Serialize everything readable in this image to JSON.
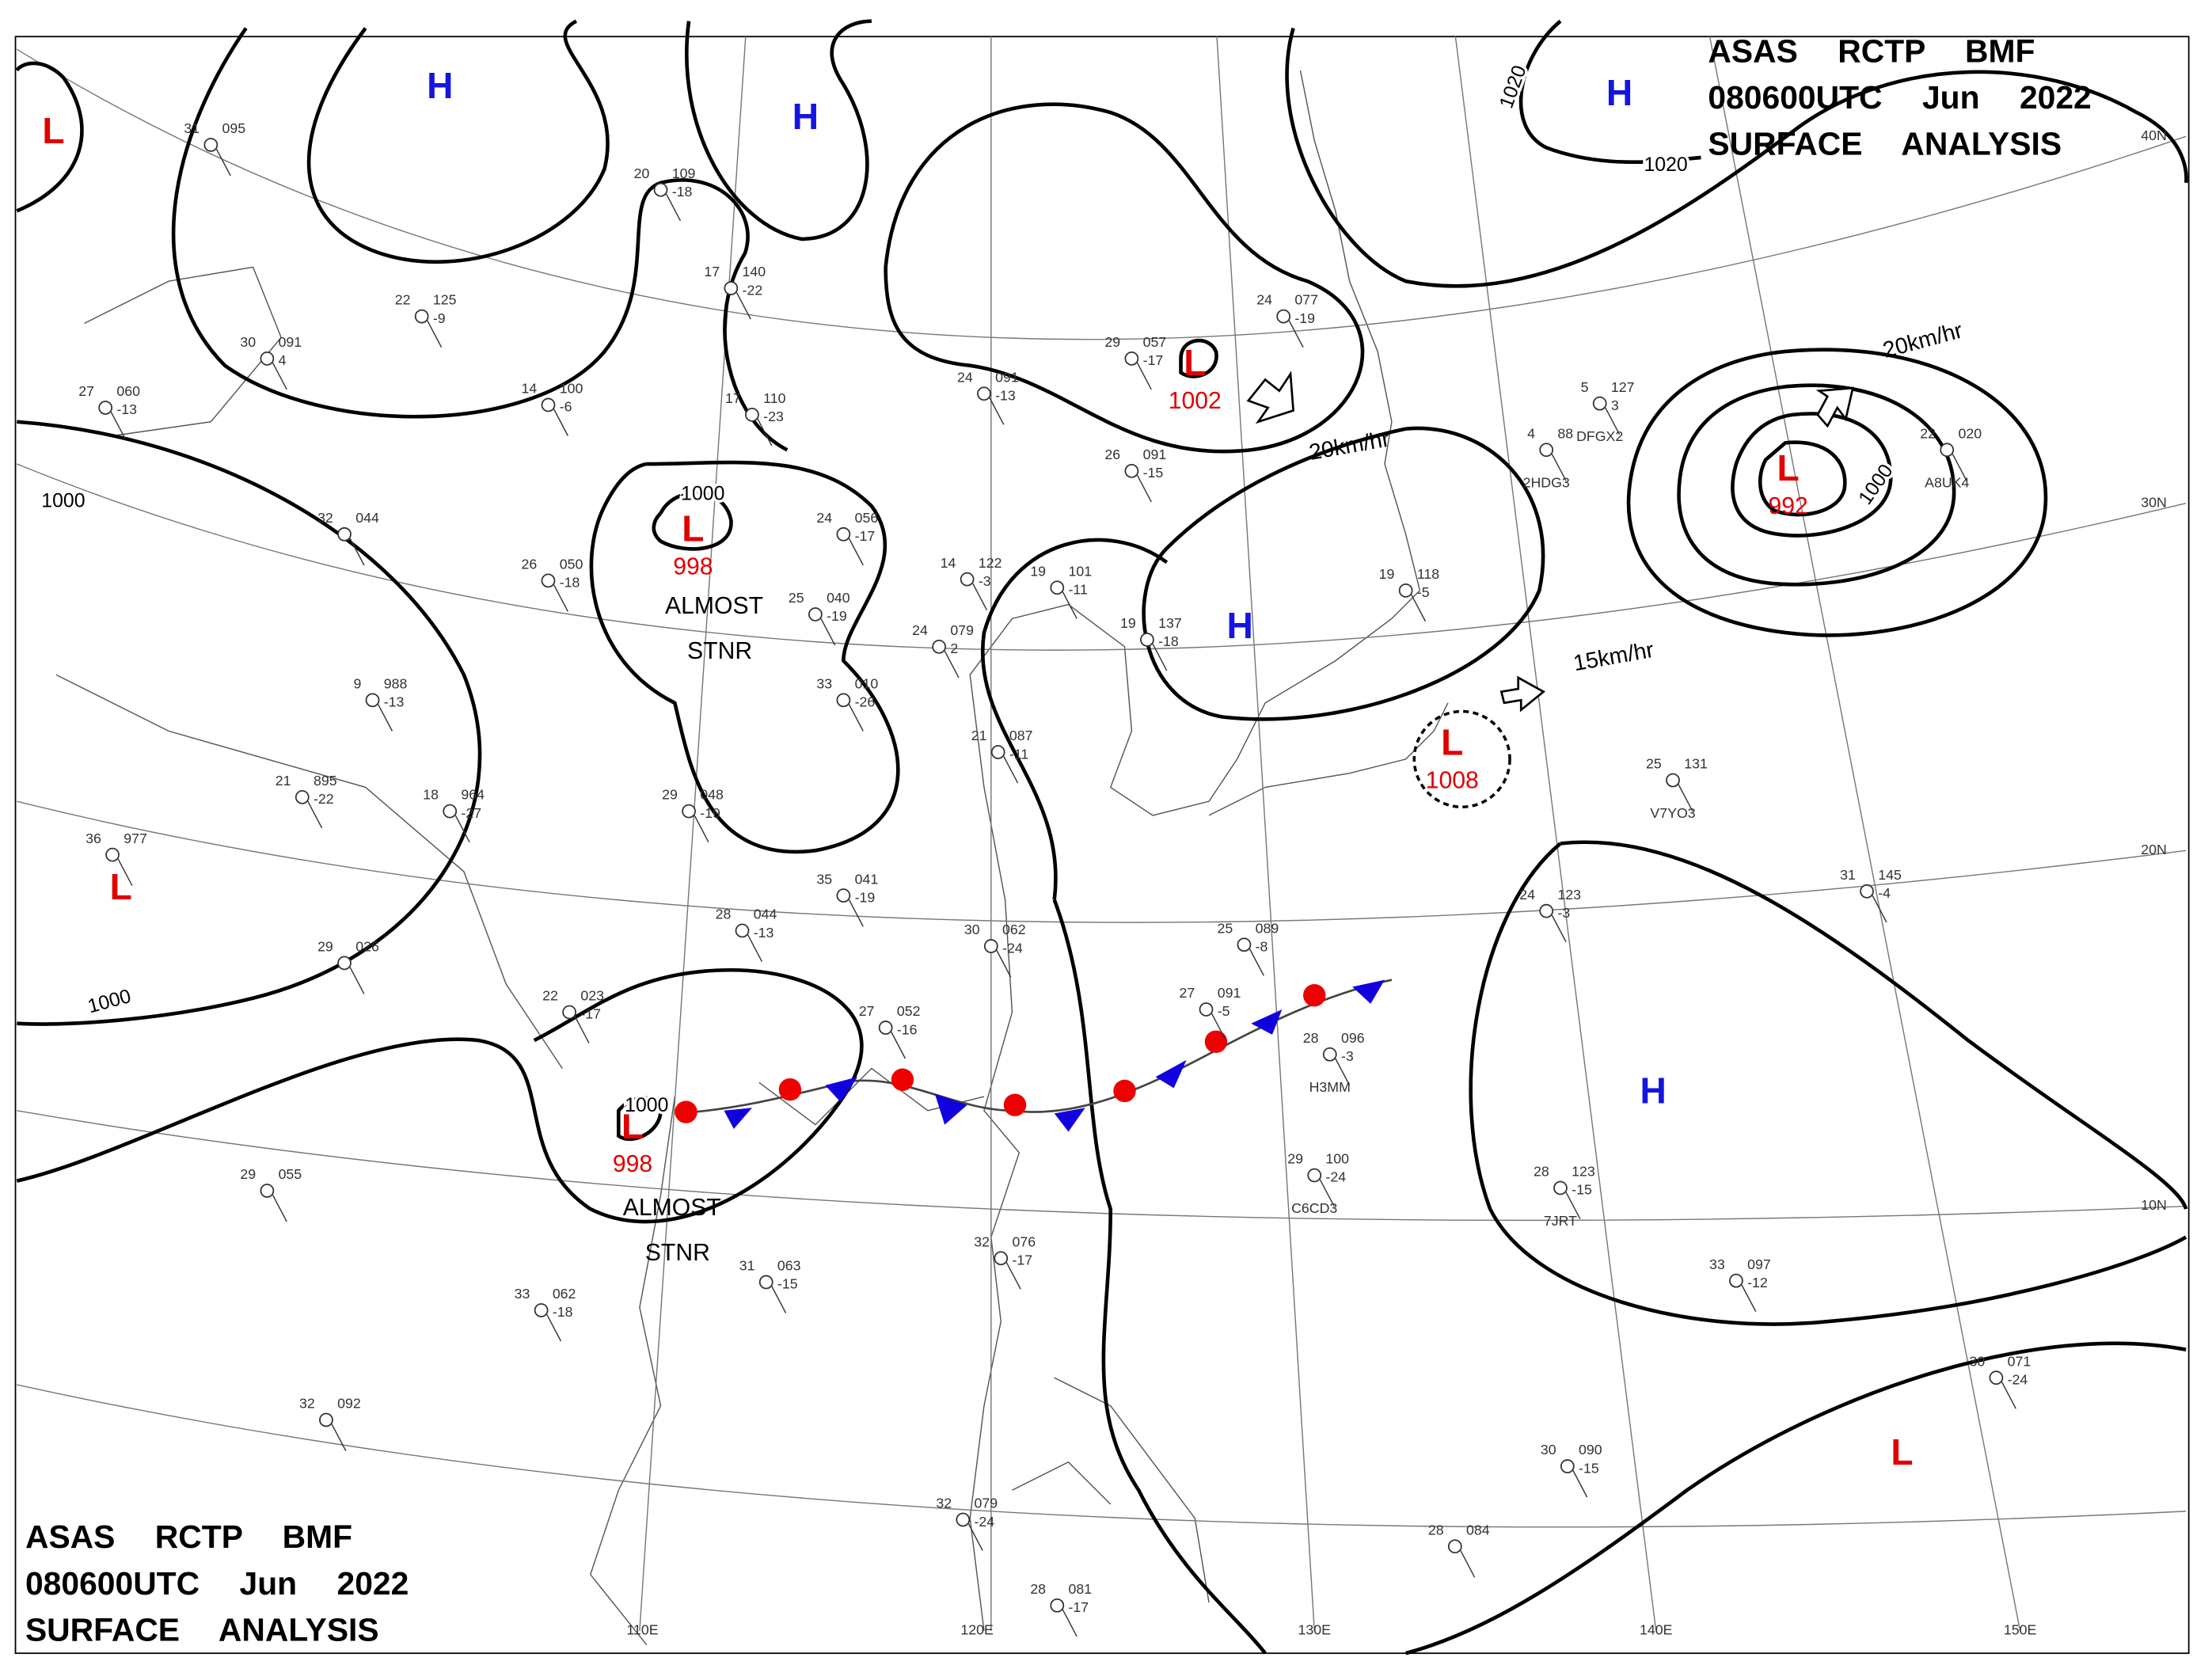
{
  "header": {
    "lines": [
      "ASAS RCTP BMF",
      "080600UTC Jun 2022",
      "SURFACE ANALYSIS"
    ]
  },
  "pressure_systems": [
    {
      "type": "H"
    },
    {
      "type": "L"
    },
    {
      "type": "H"
    },
    {
      "type": "H"
    },
    {
      "type": "L",
      "pressure": "1002"
    },
    {
      "type": "L",
      "pressure": "998"
    },
    {
      "type": "L",
      "pressure": "992"
    },
    {
      "type": "H"
    },
    {
      "type": "L",
      "pressure": "1008"
    },
    {
      "type": "L"
    },
    {
      "type": "H"
    },
    {
      "type": "L",
      "pressure": "998"
    },
    {
      "type": "L"
    }
  ],
  "isobar_labels": [
    "1000",
    "1000",
    "1000",
    "1000",
    "1000",
    "1020",
    "1020"
  ],
  "motion_labels": [
    "20km/hr",
    "15km/hr",
    "20km/hr"
  ],
  "stationary_notes": [
    {
      "lines": [
        "ALMOST",
        "STNR"
      ]
    },
    {
      "lines": [
        "ALMOST",
        "STNR"
      ]
    }
  ],
  "latitude_labels": [
    "40N",
    "30N",
    "20N",
    "10N"
  ],
  "longitude_labels": [
    "110E",
    "120E",
    "130E",
    "140E",
    "150E"
  ],
  "stations": [
    {
      "temp": "31",
      "pressure": "095"
    },
    {
      "temp": "20",
      "pressure": "109",
      "dew": "-18"
    },
    {
      "temp": "17",
      "pressure": "140",
      "dew": "-22"
    },
    {
      "temp": "22",
      "pressure": "125",
      "dew": "-9"
    },
    {
      "temp": "30",
      "pressure": "091",
      "dew": "4"
    },
    {
      "temp": "27",
      "pressure": "060",
      "dew": "-13"
    },
    {
      "temp": "14",
      "pressure": "100",
      "dew": "-6"
    },
    {
      "temp": "17",
      "pressure": "110",
      "dew": "-23"
    },
    {
      "temp": "24",
      "pressure": "091",
      "dew": "-13"
    },
    {
      "temp": "29",
      "pressure": "057",
      "dew": "-17"
    },
    {
      "temp": "24",
      "pressure": "077",
      "dew": "-19"
    },
    {
      "temp": "26",
      "pressure": "091",
      "dew": "-15"
    },
    {
      "temp": "24",
      "pressure": "056",
      "dew": "-17"
    },
    {
      "temp": "14",
      "pressure": "122",
      "dew": "-3"
    },
    {
      "temp": "19",
      "pressure": "101",
      "dew": "-11"
    },
    {
      "temp": "25",
      "pressure": "040",
      "dew": "-19"
    },
    {
      "temp": "24",
      "pressure": "079",
      "dew": "2"
    },
    {
      "temp": "33",
      "pressure": "010",
      "dew": "-26"
    },
    {
      "temp": "9",
      "pressure": "988",
      "dew": "-13"
    },
    {
      "temp": "21",
      "pressure": "087",
      "dew": "-11"
    },
    {
      "temp": "21",
      "pressure": "895",
      "dew": "-22"
    },
    {
      "temp": "18",
      "pressure": "964",
      "dew": "-27"
    },
    {
      "temp": "29",
      "pressure": "048",
      "dew": "-19"
    },
    {
      "temp": "36",
      "pressure": "977"
    },
    {
      "temp": "35",
      "pressure": "041",
      "dew": "-19"
    },
    {
      "temp": "28",
      "pressure": "044",
      "dew": "-13"
    },
    {
      "temp": "30",
      "pressure": "062",
      "dew": "-24"
    },
    {
      "temp": "25",
      "pressure": "089",
      "dew": "-8"
    },
    {
      "temp": "29",
      "pressure": "026"
    },
    {
      "temp": "22",
      "pressure": "023",
      "dew": "-17"
    },
    {
      "temp": "27",
      "pressure": "052",
      "dew": "-16"
    },
    {
      "temp": "27",
      "pressure": "091",
      "dew": "-5"
    },
    {
      "temp": "28",
      "pressure": "096",
      "dew": "-3",
      "id": "H3MM"
    },
    {
      "temp": "29",
      "pressure": "055"
    },
    {
      "temp": "29",
      "pressure": "100",
      "dew": "-24",
      "id": "C6CD3"
    },
    {
      "temp": "28",
      "pressure": "123",
      "dew": "-15",
      "id": "7JRT"
    },
    {
      "temp": "32",
      "pressure": "076",
      "dew": "-17"
    },
    {
      "temp": "31",
      "pressure": "063",
      "dew": "-15"
    },
    {
      "temp": "33",
      "pressure": "062",
      "dew": "-18"
    },
    {
      "temp": "33",
      "pressure": "097",
      "dew": "-12"
    },
    {
      "temp": "30",
      "pressure": "071",
      "dew": "-24"
    },
    {
      "temp": "32",
      "pressure": "092"
    },
    {
      "temp": "30",
      "pressure": "090",
      "dew": "-15"
    },
    {
      "temp": "32",
      "pressure": "079",
      "dew": "-24"
    },
    {
      "temp": "28",
      "pressure": "084"
    },
    {
      "temp": "28",
      "pressure": "081",
      "dew": "-17"
    },
    {
      "temp": "31",
      "pressure": "145",
      "dew": "-4"
    },
    {
      "temp": "22",
      "pressure": "020",
      "id": "A8UK4"
    },
    {
      "temp": "24",
      "pressure": "123",
      "dew": "-3"
    },
    {
      "temp": "19",
      "pressure": "118",
      "dew": "-5"
    },
    {
      "temp": "19",
      "pressure": "137",
      "dew": "-18"
    },
    {
      "temp": "32",
      "pressure": "044"
    },
    {
      "temp": "26",
      "pressure": "050",
      "dew": "-18"
    },
    {
      "temp": "25",
      "pressure": "131",
      "id": "V7YO3"
    },
    {
      "temp": "5",
      "pressure": "127",
      "dew": "3",
      "id": "DFGX2"
    },
    {
      "temp": "4",
      "pressure": "88",
      "id": "2HDG3"
    }
  ]
}
